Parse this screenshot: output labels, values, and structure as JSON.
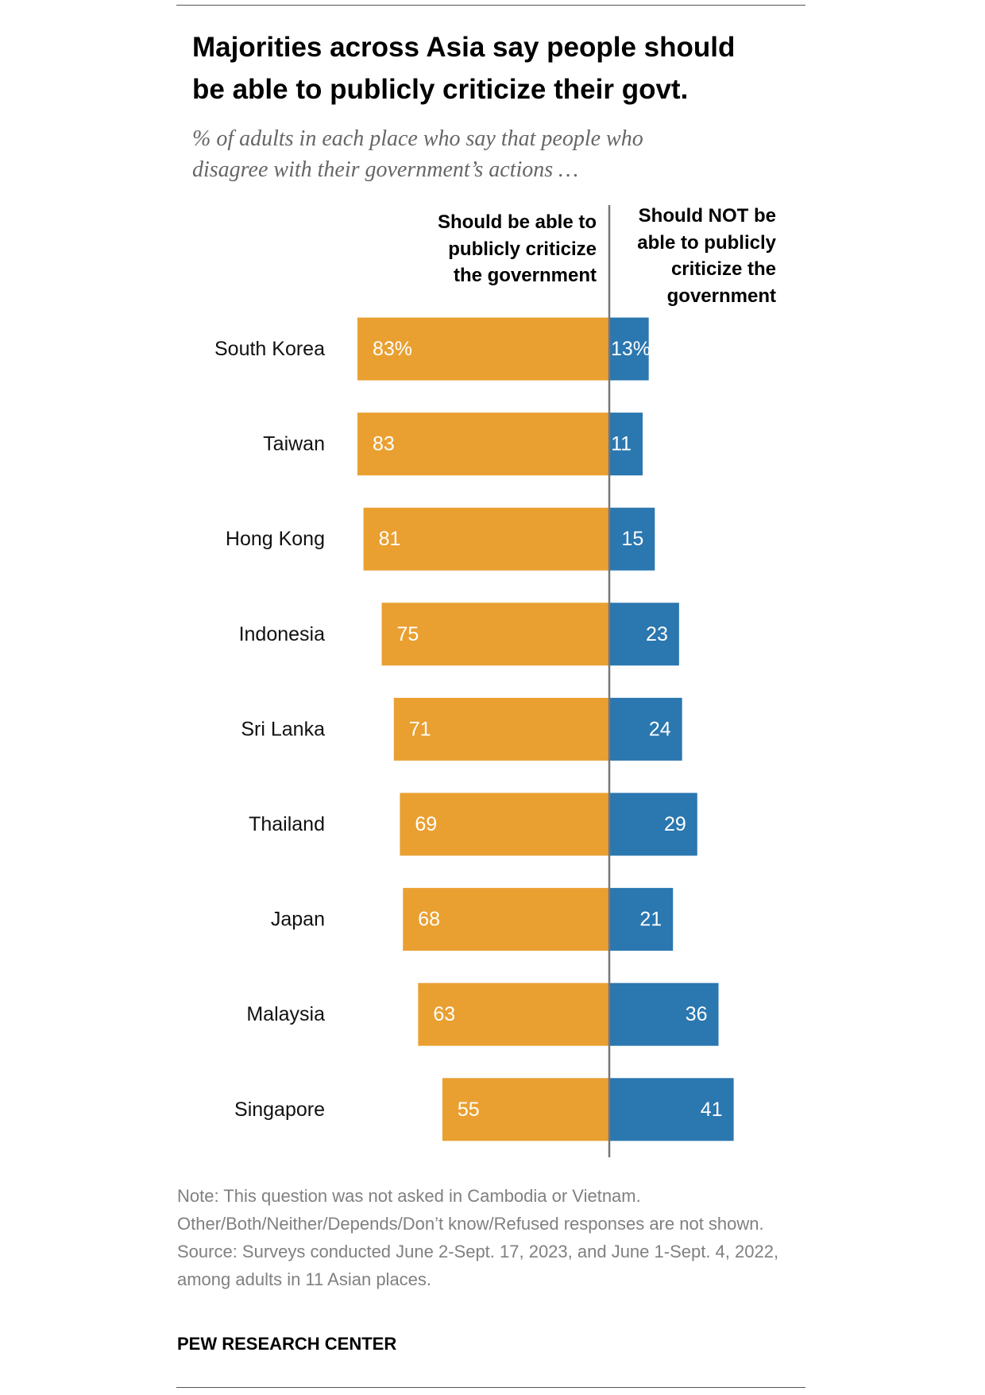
{
  "header": {
    "title_lines": [
      "Majorities across Asia say people should",
      "be able to publicly criticize their govt."
    ],
    "subtitle_lines": [
      "% of adults in each place who say that people who",
      "disagree with their government’s actions …"
    ]
  },
  "chart_data": {
    "type": "bar",
    "orientation": "diverging-horizontal",
    "categories": [
      "South Korea",
      "Taiwan",
      "Hong Kong",
      "Indonesia",
      "Sri Lanka",
      "Thailand",
      "Japan",
      "Malaysia",
      "Singapore"
    ],
    "series": [
      {
        "name": "Should be able to publicly criticize the government",
        "header_lines": [
          "Should be able to",
          "publicly criticize",
          "the government"
        ],
        "color": "#E9A031",
        "values": [
          83,
          83,
          81,
          75,
          71,
          69,
          68,
          63,
          55
        ],
        "labels": [
          "83%",
          "83",
          "81",
          "75",
          "71",
          "69",
          "68",
          "63",
          "55"
        ]
      },
      {
        "name": "Should NOT be able to publicly criticize the government",
        "header_lines": [
          "Should NOT be",
          "able to publicly",
          "criticize the",
          "government"
        ],
        "color": "#2B77B0",
        "values": [
          13,
          11,
          15,
          23,
          24,
          29,
          21,
          36,
          41
        ],
        "labels": [
          "13%",
          "11",
          "15",
          "23",
          "24",
          "29",
          "21",
          "36",
          "41"
        ]
      }
    ],
    "unit": "%",
    "axis_color": "#777777"
  },
  "footer": {
    "note": "Note: This question was not asked in Cambodia or Vietnam. Other/Both/Neither/Depends/Don’t know/Refused responses are not shown.",
    "source": "Source: Surveys conducted June 2-Sept. 17, 2023, and June 1-Sept. 4, 2022, among adults in 11 Asian places.",
    "brand": "PEW RESEARCH CENTER"
  }
}
